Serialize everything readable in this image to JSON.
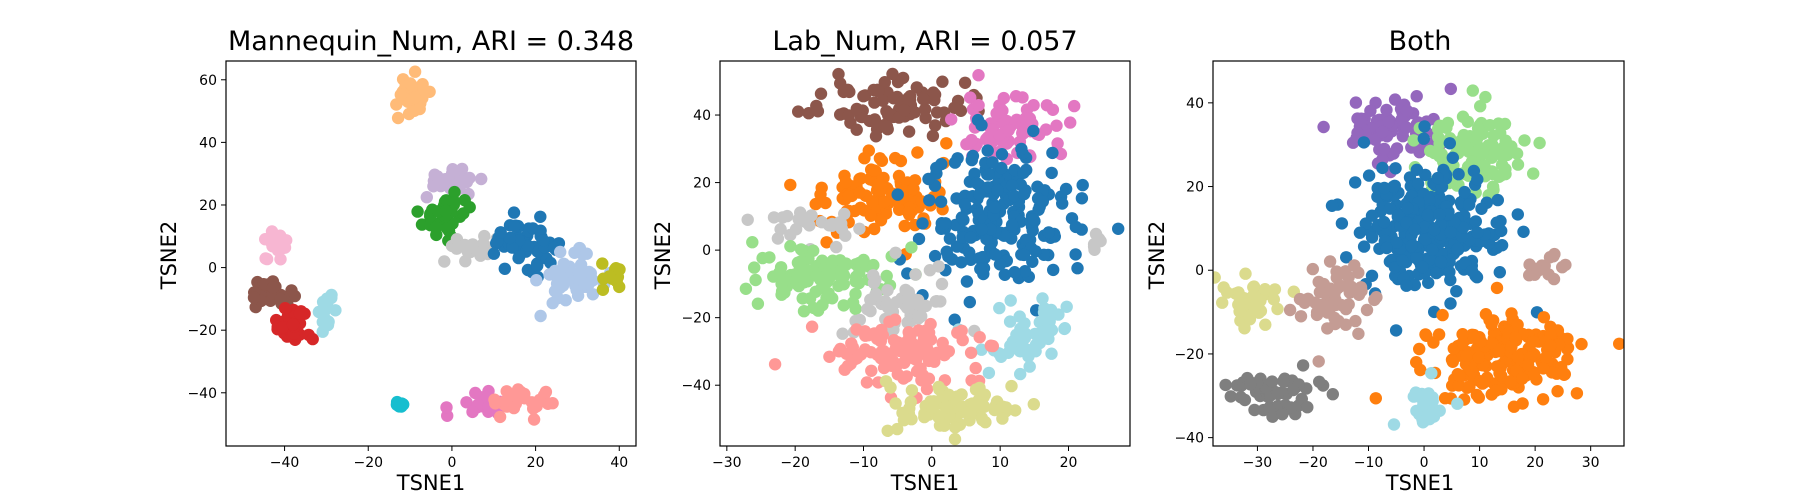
{
  "chart_data": [
    {
      "type": "scatter",
      "title": "Mannequin_Num, ARI = 0.348",
      "xlabel": "TSNE1",
      "ylabel": "TSNE2",
      "xlim": [
        -54,
        44
      ],
      "ylim": [
        -57,
        66
      ],
      "xticks": [
        -40,
        -20,
        0,
        20,
        40
      ],
      "yticks": [
        -40,
        -20,
        0,
        20,
        40,
        60
      ],
      "grid": false,
      "clusters": [
        {
          "color": "#ffbb78",
          "cx": -10,
          "cy": 54,
          "sx": 2.5,
          "sy": 3.5,
          "n": 30
        },
        {
          "color": "#c5b0d5",
          "cx": 0,
          "cy": 28,
          "sx": 3.0,
          "sy": 2.0,
          "n": 30
        },
        {
          "color": "#2ca02c",
          "cx": -1,
          "cy": 17,
          "sx": 3.0,
          "sy": 3.5,
          "n": 45
        },
        {
          "color": "#c7c7c7",
          "cx": 6,
          "cy": 6,
          "sx": 3.0,
          "sy": 2.0,
          "n": 25
        },
        {
          "color": "#1f77b4",
          "cx": 17,
          "cy": 8,
          "sx": 4.0,
          "sy": 3.5,
          "n": 55
        },
        {
          "color": "#aec7e8",
          "cx": 29,
          "cy": -4,
          "sx": 4.0,
          "sy": 4.0,
          "n": 55
        },
        {
          "color": "#bcbd22",
          "cx": 38,
          "cy": -3,
          "sx": 1.5,
          "sy": 2.0,
          "n": 15
        },
        {
          "color": "#f7b6d2",
          "cx": -42,
          "cy": 6,
          "sx": 1.5,
          "sy": 2.5,
          "n": 18
        },
        {
          "color": "#8c564b",
          "cx": -43,
          "cy": -8,
          "sx": 2.5,
          "sy": 2.5,
          "n": 28
        },
        {
          "color": "#d62728",
          "cx": -38,
          "cy": -18,
          "sx": 2.5,
          "sy": 2.5,
          "n": 45
        },
        {
          "color": "#9edae5",
          "cx": -30,
          "cy": -14,
          "sx": 1.0,
          "sy": 2.5,
          "n": 14
        },
        {
          "color": "#17becf",
          "cx": -12,
          "cy": -44,
          "sx": 0.7,
          "sy": 0.7,
          "n": 8
        },
        {
          "color": "#e377c2",
          "cx": 7,
          "cy": -44,
          "sx": 3.5,
          "sy": 2.5,
          "n": 22
        },
        {
          "color": "#ff9896",
          "cx": 18,
          "cy": -42,
          "sx": 3.5,
          "sy": 2.5,
          "n": 28
        }
      ]
    },
    {
      "type": "scatter",
      "title": "Lab_Num, ARI = 0.057",
      "xlabel": "TSNE1",
      "ylabel": "TSNE2",
      "xlim": [
        -31,
        29
      ],
      "ylim": [
        -58,
        56
      ],
      "xticks": [
        -30,
        -20,
        -10,
        0,
        10,
        20
      ],
      "yticks": [
        -40,
        -20,
        0,
        20,
        40
      ],
      "grid": false,
      "clusters": [
        {
          "color": "#8c564b",
          "cx": -5,
          "cy": 43,
          "sx": 5.0,
          "sy": 4.0,
          "n": 90
        },
        {
          "color": "#e377c2",
          "cx": 11,
          "cy": 36,
          "sx": 4.0,
          "sy": 5.0,
          "n": 70
        },
        {
          "color": "#ff7f0e",
          "cx": -8,
          "cy": 17,
          "sx": 5.0,
          "sy": 6.0,
          "n": 110
        },
        {
          "color": "#1f77b4",
          "cx": 10,
          "cy": 10,
          "sx": 5.5,
          "sy": 11.0,
          "n": 200
        },
        {
          "color": "#c7c7c7",
          "cx": -17,
          "cy": 7,
          "sx": 4.0,
          "sy": 3.0,
          "n": 25
        },
        {
          "color": "#98df8a",
          "cx": -16,
          "cy": -8,
          "sx": 5.0,
          "sy": 5.0,
          "n": 100
        },
        {
          "color": "#c7c7c7",
          "cx": -5,
          "cy": -17,
          "sx": 3.5,
          "sy": 5.0,
          "n": 60
        },
        {
          "color": "#9edae5",
          "cx": 14,
          "cy": -24,
          "sx": 3.0,
          "sy": 6.0,
          "n": 50
        },
        {
          "color": "#ff9896",
          "cx": -4,
          "cy": -31,
          "sx": 5.5,
          "sy": 4.5,
          "n": 110
        },
        {
          "color": "#dbdb8d",
          "cx": 3,
          "cy": -47,
          "sx": 4.5,
          "sy": 3.5,
          "n": 90
        },
        {
          "color": "#c7c7c7",
          "cx": 24,
          "cy": 2,
          "sx": 1.5,
          "sy": 1.5,
          "n": 7
        }
      ]
    },
    {
      "type": "scatter",
      "title": "Both",
      "xlabel": "TSNE1",
      "ylabel": "TSNE2",
      "xlim": [
        -38,
        36
      ],
      "ylim": [
        -42,
        50
      ],
      "xticks": [
        -30,
        -20,
        -10,
        0,
        10,
        20,
        30
      ],
      "yticks": [
        -40,
        -20,
        0,
        20,
        40
      ],
      "grid": false,
      "clusters": [
        {
          "color": "#9467bd",
          "cx": -6,
          "cy": 34,
          "sx": 4.5,
          "sy": 4.0,
          "n": 70
        },
        {
          "color": "#98df8a",
          "cx": 9,
          "cy": 28,
          "sx": 5.0,
          "sy": 5.0,
          "n": 110
        },
        {
          "color": "#1f77b4",
          "cx": 1,
          "cy": 9,
          "sx": 6.0,
          "sy": 8.0,
          "n": 300
        },
        {
          "color": "#dbdb8d",
          "cx": -31,
          "cy": -7,
          "sx": 3.0,
          "sy": 3.0,
          "n": 45
        },
        {
          "color": "#c49c94",
          "cx": -17,
          "cy": -7,
          "sx": 3.5,
          "sy": 4.5,
          "n": 55
        },
        {
          "color": "#c49c94",
          "cx": 23,
          "cy": 0,
          "sx": 2.0,
          "sy": 2.0,
          "n": 14
        },
        {
          "color": "#ff7f0e",
          "cx": 15,
          "cy": -21,
          "sx": 7.0,
          "sy": 5.0,
          "n": 200
        },
        {
          "color": "#9edae5",
          "cx": 0,
          "cy": -33,
          "sx": 2.0,
          "sy": 2.5,
          "n": 30
        },
        {
          "color": "#7f7f7f",
          "cx": -27,
          "cy": -30,
          "sx": 4.0,
          "sy": 3.0,
          "n": 60
        }
      ]
    }
  ]
}
